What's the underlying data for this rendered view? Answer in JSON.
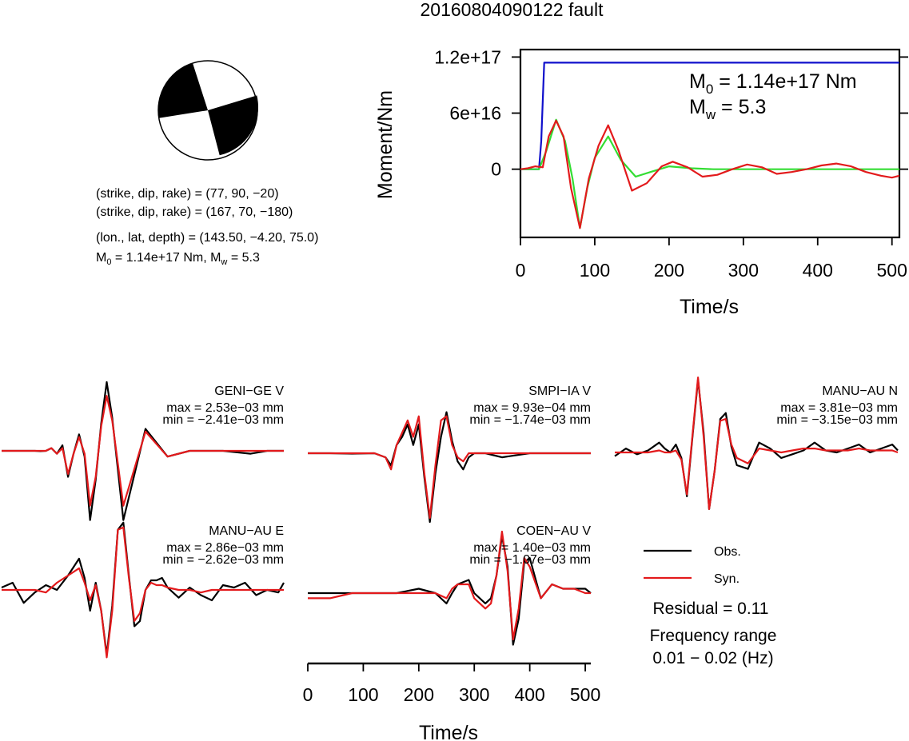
{
  "title": "20160804090122 fault",
  "focal": {
    "line1": "(strike, dip, rake) = (77, 90, −20)",
    "line2": "(strike, dip, rake) = (167, 70, −180)",
    "line3": "(lon., lat, depth) = (143.50, −4.20, 75.0)",
    "m0_prefix": "M",
    "m0_sub": "0",
    "m0_value": " = 1.14e+17 Nm, M",
    "mw_sub": "w",
    "mw_value": " = 5.3"
  },
  "moment_plot": {
    "ylabel": "Moment/Nm",
    "xlabel": "Time/s",
    "m0_label": "M",
    "m0_sub": "0",
    "m0_text": " = 1.14e+17 Nm",
    "mw_label": "M",
    "mw_sub": "w",
    "mw_text": " = 5.3"
  },
  "legend": {
    "obs": "Obs.",
    "syn": "Syn.",
    "residual": "Residual = 0.11",
    "freq_title": "Frequency range",
    "freq_range": "0.01 − 0.02 (Hz)"
  },
  "waveform_axis": {
    "xlabel": "Time/s"
  },
  "colors": {
    "obs": "#000000",
    "syn": "#e31a1c",
    "moment": "#1010cc",
    "stf": "#33dd33",
    "beach_fill": "#000000"
  },
  "chart_data": [
    {
      "type": "line",
      "title": "20160804090122 fault",
      "xlabel": "Time/s",
      "ylabel": "Moment/Nm",
      "xlim": [
        0,
        510
      ],
      "ylim": [
        -7.3e+16,
        1.28e+17
      ],
      "x_ticks": [
        0,
        100,
        200,
        300,
        400,
        500
      ],
      "x_tick_labels": [
        "0",
        "100",
        "200",
        "300",
        "400",
        "500"
      ],
      "y_ticks": [
        0,
        6e+16,
        1.2e+17
      ],
      "y_tick_labels": [
        "0",
        "6e+16",
        "1.2e+17"
      ],
      "series": [
        {
          "color": "#1010cc",
          "x": [
            0,
            25,
            28,
            32,
            510
          ],
          "y": [
            0,
            0,
            3e+16,
            1.14e+17,
            1.14e+17
          ]
        },
        {
          "color": "#33dd33",
          "x": [
            0,
            25,
            35,
            48,
            60,
            70,
            80,
            90,
            100,
            118,
            135,
            155,
            175,
            200,
            230,
            260,
            300,
            350,
            400,
            450,
            510
          ],
          "y": [
            0,
            0,
            2e+16,
            5.3e+16,
            3e+16,
            -1e+16,
            -6.3e+16,
            -2e+16,
            1.2e+16,
            3.5e+16,
            1e+16,
            -8000000000000000.0,
            -3000000000000000.0,
            3000000000000000.0,
            1000000000000000.0,
            0,
            0,
            0,
            0,
            0,
            0
          ]
        },
        {
          "color": "#e31a1c",
          "x": [
            0,
            10,
            20,
            30,
            38,
            48,
            58,
            68,
            80,
            92,
            105,
            118,
            132,
            150,
            170,
            190,
            205,
            225,
            245,
            265,
            285,
            305,
            325,
            345,
            365,
            385,
            405,
            425,
            445,
            465,
            485,
            500,
            510
          ],
          "y": [
            0,
            1000000000000000.0,
            3000000000000000.0,
            2000000000000000.0,
            3.5e+16,
            5.2e+16,
            3.5e+16,
            -2e+16,
            -6.3e+16,
            -1e+16,
            2.5e+16,
            4.7e+16,
            2e+16,
            -2.3e+16,
            -1.5e+16,
            3000000000000000.0,
            8000000000000000.0,
            2000000000000000.0,
            -8000000000000000.0,
            -6000000000000000.0,
            0,
            5000000000000000.0,
            2000000000000000.0,
            -5000000000000000.0,
            -3000000000000000.0,
            0,
            4000000000000000.0,
            6000000000000000.0,
            3000000000000000.0,
            -3000000000000000.0,
            -7000000000000000.0,
            -9000000000000000.0,
            -7000000000000000.0
          ]
        }
      ]
    },
    {
      "type": "line",
      "title": "GENI−GE V",
      "annotations": [
        "max = 2.53e−03 mm",
        "min = −2.41e−03 mm"
      ],
      "xlim": [
        0,
        510
      ],
      "ylim": [
        -0.00241,
        0.00253
      ],
      "series": [
        {
          "name": "Obs.",
          "x": [
            0,
            40,
            60,
            70,
            80,
            90,
            100,
            110,
            120,
            130,
            140,
            150,
            160,
            170,
            180,
            190,
            200,
            220,
            260,
            300,
            340,
            400,
            450,
            480,
            500,
            510
          ],
          "y": [
            0,
            0,
            0,
            -1e-05,
            0,
            0.0001,
            -0.0001,
            0.0002,
            -0.0009,
            -0.0001,
            0.0006,
            -0.0002,
            -0.0024,
            -0.001,
            0.001,
            0.0025,
            0.0012,
            -0.0024,
            0.0008,
            -0.0002,
            0,
            0,
            -0.0001,
            0,
            0,
            0
          ]
        },
        {
          "name": "Syn.",
          "x": [
            0,
            40,
            60,
            70,
            80,
            90,
            100,
            110,
            120,
            130,
            140,
            150,
            160,
            170,
            180,
            190,
            200,
            220,
            260,
            300,
            340,
            400,
            450,
            480,
            500,
            510
          ],
          "y": [
            0,
            0,
            0,
            0,
            0,
            0.0001,
            -0.0001,
            0.0001,
            -0.0008,
            -0.0001,
            0.0005,
            -0.0001,
            -0.0019,
            -0.0009,
            0.0009,
            0.002,
            0.0011,
            -0.0019,
            0.0007,
            -0.0002,
            0,
            0,
            0,
            0,
            0,
            0
          ]
        }
      ]
    },
    {
      "type": "line",
      "title": "SMPI−IA V",
      "annotations": [
        "max = 9.93e−04 mm",
        "min = −1.74e−03 mm"
      ],
      "xlim": [
        0,
        510
      ],
      "ylim": [
        -0.00174,
        0.000993
      ],
      "series": [
        {
          "name": "Obs.",
          "x": [
            0,
            40,
            80,
            120,
            140,
            150,
            160,
            170,
            180,
            190,
            200,
            210,
            220,
            230,
            240,
            250,
            260,
            270,
            280,
            290,
            300,
            320,
            350,
            400,
            450,
            510
          ],
          "y": [
            0,
            0,
            -1e-05,
            0,
            -0.0001,
            -0.0003,
            0.0002,
            0.0004,
            0.0007,
            0.0002,
            0.0007,
            -0.0006,
            -0.0017,
            -0.0005,
            0.0004,
            0.001,
            0.0003,
            -0.0002,
            -0.0004,
            -0.0001,
            0,
            0,
            -0.0001,
            0,
            0,
            0
          ]
        },
        {
          "name": "Syn.",
          "x": [
            0,
            40,
            80,
            120,
            140,
            150,
            160,
            170,
            180,
            190,
            200,
            210,
            220,
            230,
            240,
            250,
            260,
            270,
            280,
            290,
            300,
            320,
            350,
            400,
            450,
            510
          ],
          "y": [
            0,
            0,
            0,
            0,
            -0.0001,
            -0.0004,
            0.0002,
            0.0005,
            0.0008,
            0.0004,
            0.0009,
            -0.0005,
            -0.0016,
            -0.0003,
            0.0008,
            0.0009,
            0.0002,
            -0.0001,
            -0.0002,
            0,
            0,
            0,
            0,
            0,
            0,
            0
          ]
        }
      ]
    },
    {
      "type": "line",
      "title": "MANU−AU N",
      "annotations": [
        "max = 3.81e−03 mm",
        "min = −3.15e−03 mm"
      ],
      "xlim": [
        0,
        510
      ],
      "ylim": [
        -0.00315,
        0.00381
      ],
      "series": [
        {
          "name": "Obs.",
          "x": [
            0,
            20,
            40,
            60,
            80,
            90,
            100,
            110,
            120,
            130,
            140,
            150,
            160,
            170,
            180,
            190,
            200,
            210,
            220,
            240,
            260,
            280,
            300,
            320,
            340,
            360,
            380,
            400,
            420,
            440,
            460,
            480,
            500,
            510
          ],
          "y": [
            -0.0002,
            0.0002,
            -0.0001,
            0.0001,
            0.0005,
            0.0002,
            0,
            0.0004,
            -0.0003,
            -0.0024,
            0.0008,
            0.0037,
            0.001,
            -0.0031,
            -0.001,
            0.0017,
            0.002,
            0.0003,
            -0.0007,
            -0.0009,
            0.0005,
            0.0002,
            -0.0003,
            -0.0001,
            0.0001,
            0.0005,
            0.0001,
            0,
            0.0002,
            0.0004,
            0,
            0.0002,
            0.0004,
            0.0001
          ]
        },
        {
          "name": "Syn.",
          "x": [
            0,
            20,
            40,
            60,
            80,
            90,
            100,
            110,
            120,
            130,
            140,
            150,
            160,
            170,
            180,
            190,
            200,
            210,
            220,
            240,
            260,
            280,
            300,
            320,
            340,
            360,
            380,
            400,
            420,
            440,
            460,
            480,
            500,
            510
          ],
          "y": [
            0,
            0,
            0,
            0,
            0.0001,
            0,
            0,
            0.0001,
            -0.0004,
            -0.0023,
            0.0009,
            0.0038,
            0.0008,
            -0.0031,
            -0.001,
            0.0016,
            0.0017,
            0.0004,
            -0.0003,
            -0.0006,
            0.0002,
            0.0001,
            0,
            0.0001,
            0.0002,
            0.0002,
            0.0001,
            0.0001,
            0.0001,
            0.0002,
            0.0001,
            0.0001,
            0.0001,
            0
          ]
        }
      ]
    },
    {
      "type": "line",
      "title": "MANU−AU E",
      "annotations": [
        "max = 2.86e−03 mm",
        "min = −2.62e−03 mm"
      ],
      "xlim": [
        0,
        510
      ],
      "ylim": [
        -0.00262,
        0.00286
      ],
      "series": [
        {
          "name": "Obs.",
          "x": [
            0,
            20,
            40,
            60,
            80,
            100,
            120,
            140,
            150,
            160,
            170,
            180,
            190,
            200,
            210,
            220,
            230,
            240,
            250,
            260,
            270,
            280,
            290,
            300,
            320,
            340,
            360,
            380,
            400,
            420,
            440,
            460,
            480,
            500,
            510
          ],
          "y": [
            0.0001,
            0.0003,
            -0.0005,
            -0.0001,
            0.0002,
            0,
            0.0006,
            0.0013,
            0.0005,
            -0.0008,
            0.0003,
            -0.0008,
            -0.0025,
            -0.0006,
            0.0025,
            0.0028,
            0.0006,
            -0.0014,
            -0.0012,
            0,
            0.0004,
            0.0004,
            0.0005,
            0.0001,
            -0.0003,
            0.0001,
            -0.0002,
            -0.0004,
            0.0002,
            0.0001,
            0.0003,
            -0.0002,
            0,
            -0.0001,
            0.0003
          ]
        },
        {
          "name": "Syn.",
          "x": [
            0,
            20,
            40,
            60,
            80,
            100,
            120,
            140,
            150,
            160,
            170,
            180,
            190,
            200,
            210,
            220,
            230,
            240,
            250,
            260,
            270,
            280,
            290,
            300,
            320,
            340,
            360,
            380,
            400,
            420,
            440,
            460,
            480,
            500,
            510
          ],
          "y": [
            0,
            0,
            0,
            0,
            -0.0001,
            0.0003,
            0.0006,
            0.0009,
            0.0003,
            -0.0004,
            0.0002,
            -0.0008,
            -0.0026,
            -0.0008,
            0.0025,
            0.0026,
            0.0005,
            -0.0012,
            -0.0009,
            0,
            0.0003,
            0.0002,
            0.0002,
            0.0001,
            0,
            0,
            -0.0001,
            0,
            0,
            0,
            0,
            0,
            0,
            0,
            0
          ]
        }
      ]
    },
    {
      "type": "line",
      "title": "COEN−AU V",
      "annotations": [
        "max = 1.40e−03 mm",
        "min = −1.07e−03 mm"
      ],
      "xlim": [
        0,
        510
      ],
      "ylim": [
        -0.00107,
        0.0014
      ],
      "series": [
        {
          "name": "Obs.",
          "x": [
            0,
            40,
            80,
            120,
            160,
            200,
            230,
            250,
            260,
            270,
            290,
            300,
            320,
            330,
            340,
            350,
            360,
            370,
            380,
            390,
            400,
            420,
            440,
            460,
            480,
            500,
            510
          ],
          "y": [
            0,
            0,
            0,
            0,
            0,
            0.0001,
            0,
            -0.0002,
            0,
            0.0002,
            0.0003,
            0,
            -0.0002,
            -0.0001,
            0.0004,
            0.0013,
            0.0006,
            -0.001,
            -0.0005,
            0.0007,
            0.0008,
            -0.0001,
            0.0002,
            0.0001,
            0.0001,
            0.0001,
            0
          ]
        },
        {
          "name": "Syn.",
          "x": [
            0,
            40,
            80,
            120,
            160,
            200,
            230,
            250,
            260,
            270,
            290,
            300,
            320,
            330,
            340,
            350,
            360,
            370,
            380,
            390,
            400,
            420,
            440,
            460,
            480,
            500,
            510
          ],
          "y": [
            -0.0001,
            -0.0001,
            0,
            0,
            0,
            0,
            0,
            -0.0001,
            0.0001,
            0.0002,
            0.0002,
            -0.0001,
            -0.0003,
            -0.0002,
            0.0004,
            0.0014,
            0.0005,
            -0.0009,
            -0.0003,
            0.0008,
            0.0006,
            -0.0001,
            0.0002,
            0.0001,
            0.0001,
            0,
            0
          ]
        }
      ]
    },
    {
      "type": "line",
      "xlabel": "Time/s",
      "xlim": [
        0,
        510
      ],
      "x_ticks": [
        0,
        100,
        200,
        300,
        400,
        500
      ],
      "x_tick_labels": [
        "0",
        "100",
        "200",
        "300",
        "400",
        "500"
      ]
    }
  ]
}
